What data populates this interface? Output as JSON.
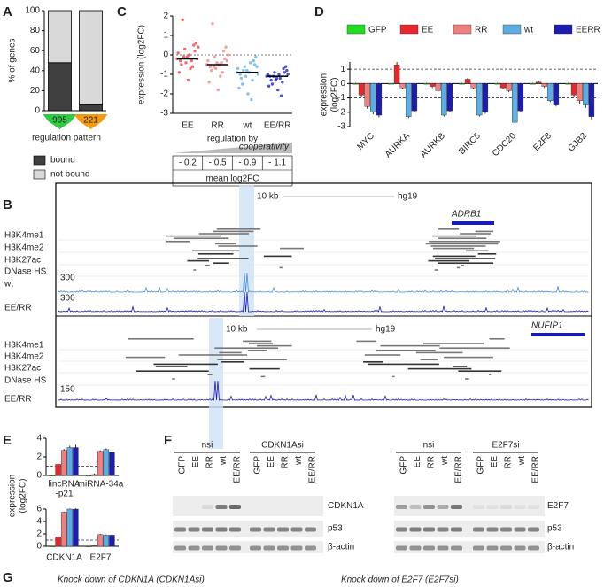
{
  "panel_labels": [
    "A",
    "B",
    "C",
    "D",
    "E",
    "F",
    "G"
  ],
  "chart_data": [
    {
      "type": "stacked_bar",
      "ylabel": "% of genes",
      "xlabel": "regulation pattern",
      "categories": [
        "995",
        "221"
      ],
      "category_colors": [
        "#2ecc40",
        "#f39c12"
      ],
      "series": [
        {
          "name": "bound",
          "color": "#404040",
          "values": [
            48,
            6
          ]
        },
        {
          "name": "not bound",
          "color": "#d9d9d9",
          "values": [
            52,
            94
          ]
        }
      ],
      "ylim": [
        0,
        100
      ],
      "yticks": [
        0,
        20,
        40,
        60,
        80,
        100
      ]
    },
    {
      "type": "strip",
      "ylabel": "expression (log2FC)",
      "xlabel": "regulation by",
      "categories": [
        "EE",
        "RR",
        "wt",
        "EE/RR"
      ],
      "groups": [
        {
          "color": "#e8383d",
          "values": [
            -0.2,
            0.3,
            -0.6,
            0.1,
            -0.4,
            0.5,
            -0.9,
            -0.1,
            0.2,
            -0.3,
            -1.3,
            0.6,
            -0.5,
            0.0,
            -0.2,
            1.8,
            -0.7,
            0.4,
            -0.1,
            -0.3
          ]
        },
        {
          "color": "#f08080",
          "values": [
            -0.5,
            -0.1,
            -0.9,
            -0.3,
            -0.7,
            0.2,
            -1.4,
            -0.4,
            -0.2,
            -0.6,
            -1.8,
            0.4,
            -0.8,
            -0.5,
            -0.3,
            1.6,
            -1.1,
            0.0,
            -0.6,
            -0.4
          ]
        },
        {
          "color": "#5dade2",
          "values": [
            -0.9,
            -0.6,
            -1.3,
            -0.7,
            -1.1,
            -0.3,
            -1.7,
            -0.8,
            -0.5,
            -1.0,
            -2.0,
            -0.1,
            -1.2,
            -0.9,
            -0.6,
            -1.5,
            -0.4,
            -1.0,
            -0.8,
            -2.3
          ]
        },
        {
          "color": "#1a1ab5",
          "values": [
            -1.1,
            -0.9,
            -1.4,
            -1.0,
            -1.3,
            -0.7,
            -1.6,
            -1.2,
            -0.9,
            -1.1,
            -1.8,
            -0.6,
            -1.3,
            -1.0,
            -0.8,
            -1.5,
            -1.2,
            -1.0,
            -1.1,
            -2.1
          ]
        }
      ],
      "reference_line": 0,
      "gradient_label": "cooperativity",
      "means": {
        "title": "mean log2FC",
        "values": [
          -0.2,
          -0.5,
          -0.9,
          -1.1
        ],
        "value_labels": [
          "- 0.2",
          "- 0.5",
          "- 0.9",
          "- 1.1"
        ]
      },
      "ylim": [
        -3,
        2
      ],
      "yticks": [
        -3,
        -2,
        -1,
        0,
        1,
        2
      ]
    },
    {
      "type": "grouped_bar",
      "ylabel": [
        "expression",
        "(log2FC)"
      ],
      "legend": "top",
      "categories": [
        "MYC",
        "AURKA",
        "AURKB",
        "BIRC5",
        "CDC20",
        "E2F8",
        "GJB2"
      ],
      "series": [
        {
          "name": "GFP",
          "color": "#22dd22",
          "values": [
            0,
            0,
            0,
            0,
            0,
            0,
            0
          ],
          "errors": [
            0.05,
            0.05,
            0.05,
            0.05,
            0.05,
            0.05,
            0.05
          ]
        },
        {
          "name": "EE",
          "color": "#e8262b",
          "values": [
            -0.8,
            1.3,
            -0.2,
            0.3,
            -0.3,
            0.1,
            -0.8
          ],
          "errors": [
            0.1,
            0.2,
            0.1,
            0.1,
            0.1,
            0.1,
            0.1
          ]
        },
        {
          "name": "RR",
          "color": "#f08080",
          "values": [
            -1.6,
            -0.3,
            -0.5,
            -0.3,
            -0.5,
            -0.2,
            -1.2
          ],
          "errors": [
            0.15,
            0.1,
            0.1,
            0.1,
            0.1,
            0.1,
            0.2
          ]
        },
        {
          "name": "wt",
          "color": "#5dade2",
          "values": [
            -2.0,
            -2.3,
            -2.2,
            -2.2,
            -2.7,
            -1.2,
            -1.5
          ],
          "errors": [
            0.15,
            0.1,
            0.1,
            0.1,
            0.15,
            0.1,
            0.2
          ]
        },
        {
          "name": "EERR",
          "color": "#1c1cb0",
          "values": [
            -2.2,
            -1.9,
            -1.9,
            -2.0,
            -1.9,
            -1.5,
            -2.3
          ],
          "errors": [
            0.15,
            0.1,
            0.1,
            0.1,
            0.1,
            0.1,
            0.2
          ]
        }
      ],
      "reference_lines": [
        1,
        -1
      ],
      "ylim": [
        -3,
        1.5
      ],
      "yticks": [
        -3,
        -2,
        -1,
        0,
        1
      ]
    },
    {
      "type": "grouped_bar",
      "ylabel": [
        "expression",
        "(log2FC)"
      ],
      "categories": [
        [
          "lincRNA",
          "-p21"
        ],
        [
          "miRNA-34a"
        ]
      ],
      "series": [
        {
          "color": "#22dd22",
          "values": [
            0,
            0
          ],
          "errors": [
            0.05,
            0.05
          ]
        },
        {
          "color": "#e8262b",
          "values": [
            1.2,
            0.1
          ],
          "errors": [
            0.1,
            0.1
          ]
        },
        {
          "color": "#f08080",
          "values": [
            2.7,
            2.6
          ],
          "errors": [
            0.15,
            0.1
          ]
        },
        {
          "color": "#5dade2",
          "values": [
            3.0,
            2.8
          ],
          "errors": [
            0.2,
            0.1
          ]
        },
        {
          "color": "#1c1cb0",
          "values": [
            3.0,
            2.5
          ],
          "errors": [
            0.3,
            0.1
          ]
        }
      ],
      "reference_lines": [
        1
      ],
      "ylim": [
        0,
        4
      ],
      "yticks": [
        0,
        2,
        4
      ]
    },
    {
      "type": "grouped_bar",
      "categories": [
        [
          "CDKN1A"
        ],
        [
          "E2F7"
        ]
      ],
      "series": [
        {
          "color": "#22dd22",
          "values": [
            0,
            0
          ],
          "errors": [
            0.05,
            0.05
          ]
        },
        {
          "color": "#e8262b",
          "values": [
            1.5,
            0.1
          ],
          "errors": [
            0.1,
            0.1
          ]
        },
        {
          "color": "#f08080",
          "values": [
            5.5,
            1.9
          ],
          "errors": [
            0.1,
            0.1
          ]
        },
        {
          "color": "#5dade2",
          "values": [
            6.0,
            1.8
          ],
          "errors": [
            0.1,
            0.1
          ]
        },
        {
          "color": "#1c1cb0",
          "values": [
            6.0,
            1.8
          ],
          "errors": [
            0.1,
            0.1
          ]
        }
      ],
      "reference_lines": [
        1
      ],
      "ylim": [
        0,
        6
      ],
      "yticks": [
        0,
        2,
        4,
        6
      ]
    }
  ],
  "genome_browser": [
    {
      "scale": "10 kb",
      "assembly": "hg19",
      "gene": "ADRB1",
      "tracks": [
        "H3K4me1",
        "H3K4me2",
        "H3K27ac",
        "DNase HS",
        "wt",
        "EE/RR"
      ],
      "signal_max": [
        300,
        300
      ]
    },
    {
      "scale": "10 kb",
      "assembly": "hg19",
      "gene": "NUFIP1",
      "tracks": [
        "H3K4me1",
        "H3K4me2",
        "H3K27ac",
        "DNase HS",
        "EE/RR"
      ],
      "signal_max": [
        150
      ]
    }
  ],
  "western_blots": [
    {
      "groups": [
        "nsi",
        "CDKN1Asi"
      ],
      "lanes": [
        "GFP",
        "EE",
        "RR",
        "wt",
        "EE/RR"
      ],
      "rows": [
        "CDKN1A",
        "p53",
        "β-actin"
      ]
    },
    {
      "groups": [
        "nsi",
        "E2F7si"
      ],
      "lanes": [
        "GFP",
        "EE",
        "RR",
        "wt",
        "EE/RR"
      ],
      "rows": [
        "E2F7",
        "p53",
        "β-actin"
      ]
    }
  ],
  "knockdown_titles": [
    "Knock down of CDKN1A (CDKN1Asi)",
    "Knock down of E2F7 (E2F7si)"
  ]
}
